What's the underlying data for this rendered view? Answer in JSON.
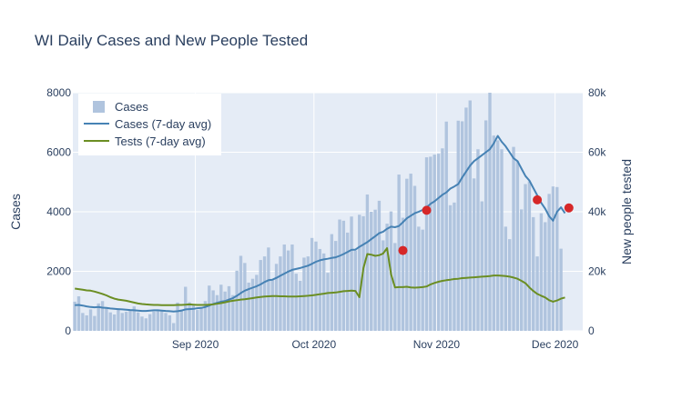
{
  "chart_data": {
    "type": "bar",
    "title": "WI Daily Cases and New People Tested",
    "xlabel": "",
    "ylabel": "Cases",
    "y2label": "New people tested",
    "ylim": [
      0,
      8000
    ],
    "y2lim": [
      0,
      80000
    ],
    "yticks": [
      "0",
      "2000",
      "4000",
      "6000",
      "8000"
    ],
    "y2ticks": [
      "0",
      "20k",
      "40k",
      "60k",
      "80k"
    ],
    "xticks": [
      {
        "date": "2020-09-01",
        "label": "Sep 2020"
      },
      {
        "date": "2020-10-01",
        "label": "Oct 2020"
      },
      {
        "date": "2020-11-01",
        "label": "Nov 2020"
      },
      {
        "date": "2020-12-01",
        "label": "Dec 2020"
      }
    ],
    "x_range": [
      "2020-08-01",
      "2020-12-08"
    ],
    "x_start": "2020-08-01",
    "grid": true,
    "legend_placement": "top-left",
    "colors": {
      "cases_bar": "#b0c4de",
      "cases_avg": "#4682b4",
      "tests_avg": "#6b8e23",
      "marker": "#d62728",
      "plot_bg": "#e5ecf6"
    },
    "legend": [
      "Cases",
      "Cases (7-day avg)",
      "Tests (7-day avg)"
    ],
    "series": [
      {
        "name": "Cases",
        "kind": "bar",
        "axis": "y",
        "values": [
          980,
          1160,
          600,
          520,
          720,
          500,
          920,
          1000,
          760,
          620,
          550,
          720,
          600,
          640,
          700,
          820,
          620,
          480,
          420,
          560,
          650,
          700,
          690,
          600,
          520,
          260,
          950,
          720,
          1480,
          960,
          860,
          700,
          760,
          1000,
          1520,
          1360,
          1200,
          1550,
          1320,
          1500,
          1200,
          2020,
          2520,
          2280,
          1620,
          1750,
          1880,
          2380,
          2500,
          2800,
          1720,
          2250,
          2500,
          2900,
          2700,
          2900,
          1920,
          1680,
          2460,
          2500,
          3120,
          3000,
          2750,
          2600,
          1950,
          3250,
          3020,
          3740,
          3700,
          3300,
          3840,
          2700,
          3900,
          3850,
          4580,
          4000,
          4070,
          4370,
          3040,
          3600,
          4010,
          2950,
          5250,
          3800,
          5110,
          5280,
          4870,
          3500,
          3400,
          5830,
          5850,
          5920,
          5950,
          6130,
          7030,
          4220,
          4310,
          7060,
          7040,
          7500,
          7740,
          5120,
          6100,
          4350,
          7070,
          8000,
          6560,
          6400,
          6100,
          3500,
          3080,
          6180,
          5700,
          4080,
          4930,
          5020,
          3820,
          2500,
          3950,
          3650,
          4600,
          4850,
          4830,
          2760
        ]
      },
      {
        "name": "Cases (7-day avg)",
        "kind": "line",
        "axis": "y",
        "values": [
          860,
          870,
          850,
          820,
          800,
          790,
          800,
          780,
          770,
          750,
          740,
          730,
          720,
          710,
          700,
          690,
          680,
          670,
          670,
          680,
          690,
          690,
          680,
          670,
          660,
          650,
          660,
          680,
          720,
          730,
          740,
          760,
          770,
          800,
          850,
          900,
          940,
          980,
          1000,
          1050,
          1100,
          1180,
          1270,
          1350,
          1400,
          1450,
          1500,
          1560,
          1640,
          1700,
          1720,
          1780,
          1850,
          1920,
          1990,
          2050,
          2080,
          2110,
          2150,
          2190,
          2250,
          2320,
          2370,
          2400,
          2420,
          2450,
          2470,
          2520,
          2580,
          2650,
          2720,
          2730,
          2820,
          2900,
          2980,
          3080,
          3180,
          3280,
          3330,
          3430,
          3500,
          3480,
          3520,
          3650,
          3780,
          3870,
          3950,
          4000,
          4060,
          4150,
          4270,
          4350,
          4460,
          4570,
          4650,
          4780,
          4850,
          4930,
          5150,
          5350,
          5550,
          5700,
          5800,
          5900,
          6000,
          6100,
          6300,
          6550,
          6350,
          6200,
          6000,
          5800,
          5700,
          5450,
          5200,
          5050,
          4800,
          4550,
          4300,
          4100,
          3850,
          3700,
          4000,
          4150,
          3950
        ]
      },
      {
        "name": "Tests (7-day avg)",
        "kind": "line",
        "axis": "y2",
        "values": [
          14200,
          14000,
          13800,
          13600,
          13500,
          13200,
          12800,
          12400,
          11900,
          11300,
          10800,
          10500,
          10300,
          10100,
          9800,
          9500,
          9200,
          9000,
          8900,
          8800,
          8700,
          8700,
          8600,
          8600,
          8600,
          8600,
          8700,
          8700,
          8800,
          8900,
          8800,
          8700,
          8700,
          8700,
          8800,
          8900,
          9100,
          9300,
          9600,
          9900,
          10100,
          10300,
          10500,
          10600,
          10800,
          11000,
          11200,
          11400,
          11500,
          11600,
          11700,
          11700,
          11600,
          11600,
          11500,
          11500,
          11500,
          11600,
          11700,
          11800,
          11900,
          12100,
          12300,
          12500,
          12700,
          12800,
          12900,
          13100,
          13300,
          13400,
          13500,
          13400,
          11300,
          21000,
          25800,
          25600,
          25200,
          25400,
          26000,
          27800,
          19000,
          14600,
          14700,
          14700,
          14800,
          14600,
          14500,
          14600,
          14700,
          14900,
          15600,
          16100,
          16500,
          16800,
          17000,
          17200,
          17400,
          17500,
          17700,
          17800,
          17900,
          18000,
          18100,
          18200,
          18300,
          18400,
          18600,
          18600,
          18500,
          18400,
          18200,
          17900,
          17500,
          16800,
          16000,
          14600,
          13400,
          12400,
          11800,
          11200,
          10300,
          9800,
          10200,
          10800,
          11200
        ]
      }
    ],
    "markers": [
      {
        "date": "2020-10-23",
        "value": 2700
      },
      {
        "date": "2020-10-29",
        "value": 4050
      },
      {
        "date": "2020-11-26",
        "value": 4400
      },
      {
        "date": "2020-12-04",
        "value": 4130
      }
    ]
  }
}
